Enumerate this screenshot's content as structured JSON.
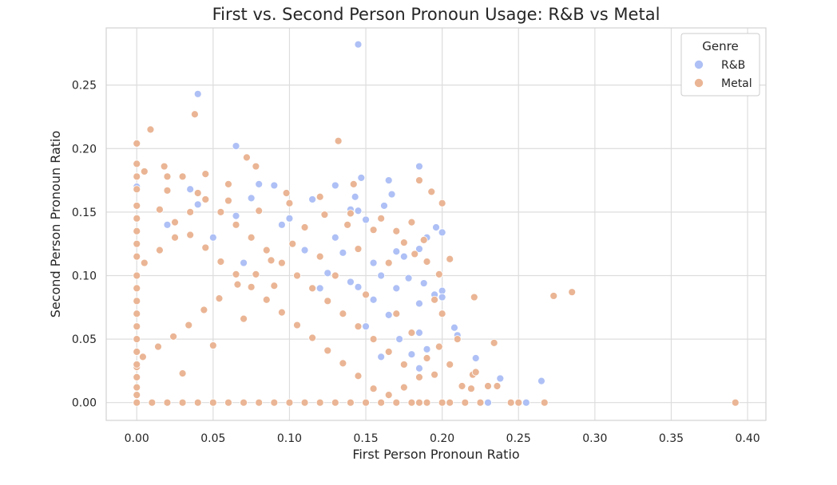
{
  "chart_data": {
    "type": "scatter",
    "title": "First vs. Second Person Pronoun Usage: R&B vs Metal",
    "xlabel": "First Person Pronoun Ratio",
    "ylabel": "Second Person Pronoun Ratio",
    "xlim": [
      -0.02,
      0.412
    ],
    "ylim": [
      -0.014,
      0.295
    ],
    "x_ticks": [
      "0.00",
      "0.05",
      "0.10",
      "0.15",
      "0.20",
      "0.25",
      "0.30",
      "0.35",
      "0.40"
    ],
    "y_ticks": [
      "0.00",
      "0.05",
      "0.10",
      "0.15",
      "0.20",
      "0.25"
    ],
    "grid": true,
    "legend": {
      "title": "Genre",
      "placement": "top-right"
    },
    "series": [
      {
        "name": "R&B",
        "color": "#aec0f5",
        "points": [
          [
            0.145,
            0.282
          ],
          [
            0.04,
            0.243
          ],
          [
            0.065,
            0.202
          ],
          [
            0.185,
            0.186
          ],
          [
            0.147,
            0.177
          ],
          [
            0.165,
            0.175
          ],
          [
            0.13,
            0.171
          ],
          [
            0.09,
            0.171
          ],
          [
            0.08,
            0.172
          ],
          [
            0.0,
            0.17
          ],
          [
            0.035,
            0.168
          ],
          [
            0.167,
            0.164
          ],
          [
            0.143,
            0.162
          ],
          [
            0.075,
            0.161
          ],
          [
            0.115,
            0.16
          ],
          [
            0.04,
            0.156
          ],
          [
            0.162,
            0.155
          ],
          [
            0.14,
            0.152
          ],
          [
            0.145,
            0.151
          ],
          [
            0.065,
            0.147
          ],
          [
            0.15,
            0.144
          ],
          [
            0.196,
            0.138
          ],
          [
            0.2,
            0.134
          ],
          [
            0.19,
            0.13
          ],
          [
            0.185,
            0.121
          ],
          [
            0.17,
            0.119
          ],
          [
            0.175,
            0.115
          ],
          [
            0.155,
            0.11
          ],
          [
            0.16,
            0.1
          ],
          [
            0.178,
            0.098
          ],
          [
            0.188,
            0.094
          ],
          [
            0.2,
            0.088
          ],
          [
            0.195,
            0.085
          ],
          [
            0.2,
            0.083
          ],
          [
            0.145,
            0.091
          ],
          [
            0.17,
            0.09
          ],
          [
            0.185,
            0.078
          ],
          [
            0.14,
            0.095
          ],
          [
            0.208,
            0.059
          ],
          [
            0.21,
            0.053
          ],
          [
            0.185,
            0.055
          ],
          [
            0.19,
            0.042
          ],
          [
            0.222,
            0.035
          ],
          [
            0.185,
            0.027
          ],
          [
            0.238,
            0.019
          ],
          [
            0.265,
            0.017
          ],
          [
            0.25,
            0.0
          ],
          [
            0.255,
            0.0
          ],
          [
            0.23,
            0.0
          ],
          [
            0.155,
            0.081
          ],
          [
            0.165,
            0.069
          ],
          [
            0.15,
            0.06
          ],
          [
            0.172,
            0.05
          ],
          [
            0.18,
            0.038
          ],
          [
            0.16,
            0.036
          ],
          [
            0.12,
            0.09
          ],
          [
            0.11,
            0.12
          ],
          [
            0.13,
            0.13
          ],
          [
            0.095,
            0.14
          ],
          [
            0.125,
            0.102
          ],
          [
            0.05,
            0.13
          ],
          [
            0.02,
            0.14
          ],
          [
            0.07,
            0.11
          ],
          [
            0.1,
            0.145
          ],
          [
            0.135,
            0.118
          ]
        ]
      },
      {
        "name": "Metal",
        "color": "#eab595",
        "points": [
          [
            0.038,
            0.227
          ],
          [
            0.009,
            0.215
          ],
          [
            0.132,
            0.206
          ],
          [
            0.0,
            0.204
          ],
          [
            0.072,
            0.193
          ],
          [
            0.0,
            0.188
          ],
          [
            0.018,
            0.186
          ],
          [
            0.078,
            0.186
          ],
          [
            0.005,
            0.182
          ],
          [
            0.045,
            0.18
          ],
          [
            0.02,
            0.178
          ],
          [
            0.03,
            0.178
          ],
          [
            0.0,
            0.178
          ],
          [
            0.185,
            0.175
          ],
          [
            0.06,
            0.172
          ],
          [
            0.142,
            0.172
          ],
          [
            0.0,
            0.168
          ],
          [
            0.2,
            0.157
          ],
          [
            0.193,
            0.166
          ],
          [
            0.098,
            0.165
          ],
          [
            0.285,
            0.087
          ],
          [
            0.273,
            0.084
          ],
          [
            0.221,
            0.083
          ],
          [
            0.392,
            0.0
          ],
          [
            0.234,
            0.047
          ],
          [
            0.25,
            0.0
          ],
          [
            0.245,
            0.0
          ],
          [
            0.267,
            0.0
          ],
          [
            0.22,
            0.022
          ],
          [
            0.222,
            0.024
          ],
          [
            0.236,
            0.013
          ],
          [
            0.23,
            0.013
          ],
          [
            0.213,
            0.013
          ],
          [
            0.219,
            0.011
          ],
          [
            0.225,
            0.0
          ],
          [
            0.205,
            0.0
          ],
          [
            0.215,
            0.0
          ],
          [
            0.2,
            0.0
          ],
          [
            0.19,
            0.0
          ],
          [
            0.185,
            0.0
          ],
          [
            0.18,
            0.0
          ],
          [
            0.17,
            0.0
          ],
          [
            0.16,
            0.0
          ],
          [
            0.15,
            0.0
          ],
          [
            0.14,
            0.0
          ],
          [
            0.13,
            0.0
          ],
          [
            0.12,
            0.0
          ],
          [
            0.11,
            0.0
          ],
          [
            0.1,
            0.0
          ],
          [
            0.09,
            0.0
          ],
          [
            0.08,
            0.0
          ],
          [
            0.07,
            0.0
          ],
          [
            0.06,
            0.0
          ],
          [
            0.05,
            0.0
          ],
          [
            0.04,
            0.0
          ],
          [
            0.03,
            0.0
          ],
          [
            0.02,
            0.0
          ],
          [
            0.01,
            0.0
          ],
          [
            0.0,
            0.0
          ],
          [
            0.195,
            0.022
          ],
          [
            0.198,
            0.044
          ],
          [
            0.205,
            0.03
          ],
          [
            0.21,
            0.05
          ],
          [
            0.2,
            0.07
          ],
          [
            0.195,
            0.081
          ],
          [
            0.198,
            0.101
          ],
          [
            0.205,
            0.113
          ],
          [
            0.188,
            0.128
          ],
          [
            0.18,
            0.142
          ],
          [
            0.182,
            0.117
          ],
          [
            0.175,
            0.126
          ],
          [
            0.165,
            0.11
          ],
          [
            0.155,
            0.136
          ],
          [
            0.145,
            0.121
          ],
          [
            0.138,
            0.14
          ],
          [
            0.123,
            0.148
          ],
          [
            0.11,
            0.138
          ],
          [
            0.102,
            0.125
          ],
          [
            0.088,
            0.112
          ],
          [
            0.078,
            0.101
          ],
          [
            0.066,
            0.093
          ],
          [
            0.054,
            0.082
          ],
          [
            0.044,
            0.073
          ],
          [
            0.034,
            0.061
          ],
          [
            0.024,
            0.052
          ],
          [
            0.014,
            0.044
          ],
          [
            0.004,
            0.036
          ],
          [
            0.0,
            0.028
          ],
          [
            0.0,
            0.02
          ],
          [
            0.0,
            0.012
          ],
          [
            0.0,
            0.006
          ],
          [
            0.015,
            0.152
          ],
          [
            0.025,
            0.142
          ],
          [
            0.035,
            0.132
          ],
          [
            0.045,
            0.122
          ],
          [
            0.055,
            0.111
          ],
          [
            0.065,
            0.101
          ],
          [
            0.075,
            0.091
          ],
          [
            0.085,
            0.081
          ],
          [
            0.095,
            0.071
          ],
          [
            0.105,
            0.061
          ],
          [
            0.115,
            0.051
          ],
          [
            0.125,
            0.041
          ],
          [
            0.135,
            0.031
          ],
          [
            0.145,
            0.021
          ],
          [
            0.155,
            0.011
          ],
          [
            0.165,
            0.006
          ],
          [
            0.175,
            0.012
          ],
          [
            0.185,
            0.02
          ],
          [
            0.175,
            0.03
          ],
          [
            0.165,
            0.04
          ],
          [
            0.155,
            0.05
          ],
          [
            0.145,
            0.06
          ],
          [
            0.135,
            0.07
          ],
          [
            0.125,
            0.08
          ],
          [
            0.115,
            0.09
          ],
          [
            0.105,
            0.1
          ],
          [
            0.095,
            0.11
          ],
          [
            0.085,
            0.12
          ],
          [
            0.075,
            0.13
          ],
          [
            0.065,
            0.14
          ],
          [
            0.055,
            0.15
          ],
          [
            0.045,
            0.16
          ],
          [
            0.035,
            0.15
          ],
          [
            0.025,
            0.13
          ],
          [
            0.015,
            0.12
          ],
          [
            0.005,
            0.11
          ],
          [
            0.0,
            0.1
          ],
          [
            0.0,
            0.09
          ],
          [
            0.0,
            0.08
          ],
          [
            0.0,
            0.07
          ],
          [
            0.0,
            0.06
          ],
          [
            0.0,
            0.05
          ],
          [
            0.0,
            0.04
          ],
          [
            0.0,
            0.03
          ],
          [
            0.0,
            0.115
          ],
          [
            0.0,
            0.125
          ],
          [
            0.0,
            0.135
          ],
          [
            0.0,
            0.145
          ],
          [
            0.0,
            0.155
          ],
          [
            0.02,
            0.167
          ],
          [
            0.04,
            0.165
          ],
          [
            0.06,
            0.159
          ],
          [
            0.08,
            0.151
          ],
          [
            0.1,
            0.157
          ],
          [
            0.12,
            0.162
          ],
          [
            0.14,
            0.149
          ],
          [
            0.16,
            0.145
          ],
          [
            0.17,
            0.135
          ],
          [
            0.19,
            0.111
          ],
          [
            0.12,
            0.115
          ],
          [
            0.09,
            0.092
          ],
          [
            0.07,
            0.066
          ],
          [
            0.05,
            0.045
          ],
          [
            0.03,
            0.023
          ],
          [
            0.13,
            0.1
          ],
          [
            0.15,
            0.085
          ],
          [
            0.17,
            0.07
          ],
          [
            0.18,
            0.055
          ],
          [
            0.19,
            0.035
          ]
        ]
      }
    ]
  }
}
